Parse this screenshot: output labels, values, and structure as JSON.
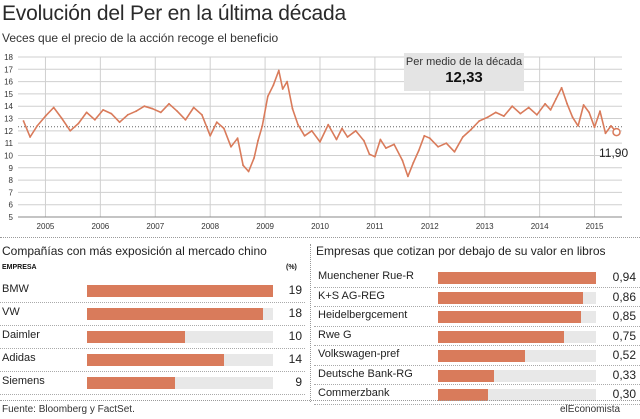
{
  "title": "Evolución del Per en la última década",
  "subtitle": "Veces que el precio de la acción recoge el beneficio",
  "source": "Fuente: Bloomberg y FactSet.",
  "brand": "elEconomista",
  "colors": {
    "line": "#d97b5b",
    "bar": "#d97b5b",
    "stripe": "#e8e8e8",
    "avg_box": "#e4e4e4",
    "grid": "#cfcfcf"
  },
  "chart_data": [
    {
      "type": "line",
      "title": "Evolución del Per en la última década",
      "subtitle": "Veces que el precio de la acción recoge el beneficio",
      "x_ticks": [
        "2005",
        "2006",
        "2007",
        "2008",
        "2009",
        "2010",
        "2011",
        "2012",
        "2013",
        "2014",
        "2015"
      ],
      "y_ticks": [
        "5",
        "6",
        "7",
        "8",
        "9",
        "10",
        "11",
        "12",
        "13",
        "14",
        "15",
        "16",
        "17",
        "18"
      ],
      "ylim": [
        5,
        18
      ],
      "grid": true,
      "annotation": {
        "label": "Per medio de la década",
        "value": "12,33"
      },
      "last_label": "11,90",
      "series": [
        {
          "x": [
            2004.6,
            2004.72,
            2004.85,
            2005.0,
            2005.15,
            2005.3,
            2005.45,
            2005.6,
            2005.75,
            2005.9,
            2006.05,
            2006.2,
            2006.35,
            2006.5,
            2006.65,
            2006.8,
            2006.95,
            2007.1,
            2007.25,
            2007.4,
            2007.55,
            2007.7,
            2007.85,
            2008.0,
            2008.12,
            2008.25,
            2008.38,
            2008.5,
            2008.6,
            2008.7,
            2008.8,
            2008.87,
            2008.95,
            2009.05,
            2009.15,
            2009.25,
            2009.32,
            2009.4,
            2009.5,
            2009.6,
            2009.72,
            2009.85,
            2010.0,
            2010.15,
            2010.3,
            2010.4,
            2010.5,
            2010.65,
            2010.8,
            2010.9,
            2011.0,
            2011.1,
            2011.2,
            2011.35,
            2011.5,
            2011.6,
            2011.7,
            2011.8,
            2011.9,
            2012.0,
            2012.15,
            2012.3,
            2012.45,
            2012.6,
            2012.75,
            2012.9,
            2013.05,
            2013.2,
            2013.35,
            2013.5,
            2013.65,
            2013.8,
            2013.95,
            2014.1,
            2014.2,
            2014.3,
            2014.4,
            2014.5,
            2014.6,
            2014.7,
            2014.8,
            2014.9,
            2015.0,
            2015.1,
            2015.2,
            2015.3,
            2015.4
          ],
          "y": [
            12.8,
            11.5,
            12.4,
            13.2,
            13.9,
            13.0,
            12.0,
            12.6,
            13.5,
            12.9,
            13.7,
            13.4,
            12.7,
            13.3,
            13.6,
            14.0,
            13.8,
            13.5,
            14.2,
            13.6,
            12.9,
            13.9,
            13.3,
            11.6,
            12.7,
            12.2,
            10.7,
            11.4,
            9.2,
            8.7,
            9.8,
            11.2,
            12.4,
            14.8,
            15.7,
            16.9,
            15.4,
            16.0,
            13.8,
            12.5,
            11.6,
            12.0,
            11.1,
            12.5,
            11.3,
            12.2,
            11.5,
            12.0,
            11.2,
            10.1,
            9.9,
            11.3,
            10.6,
            10.9,
            9.6,
            8.3,
            9.4,
            10.4,
            11.6,
            11.4,
            10.7,
            11.0,
            10.3,
            11.5,
            12.1,
            12.8,
            13.1,
            13.5,
            13.2,
            14.0,
            13.4,
            13.9,
            13.3,
            14.2,
            13.7,
            14.6,
            15.5,
            14.2,
            13.1,
            12.4,
            14.1,
            13.5,
            12.3,
            13.6,
            11.8,
            12.4,
            11.9
          ]
        }
      ]
    },
    {
      "type": "bar",
      "title": "Compañías con más exposición al mercado chino",
      "header_left": "EMPRESA",
      "header_right": "(%)",
      "categories": [
        "BMW",
        "VW",
        "Daimler",
        "Adidas",
        "Siemens"
      ],
      "values": [
        19,
        18,
        10,
        14,
        9
      ],
      "value_labels": [
        "19",
        "18",
        "10",
        "14",
        "9"
      ]
    },
    {
      "type": "bar",
      "title": "Empresas que cotizan por debajo de su valor en libros",
      "categories": [
        "Muenchener Rue-R",
        "K+S AG-REG",
        "Heidelbergcement",
        "Rwe G",
        "Volkswagen-pref",
        "Deutsche Bank-RG",
        "Commerzbank"
      ],
      "values": [
        0.94,
        0.86,
        0.85,
        0.75,
        0.52,
        0.33,
        0.3
      ],
      "value_labels": [
        "0,94",
        "0,86",
        "0,85",
        "0,75",
        "0,52",
        "0,33",
        "0,30"
      ]
    }
  ]
}
